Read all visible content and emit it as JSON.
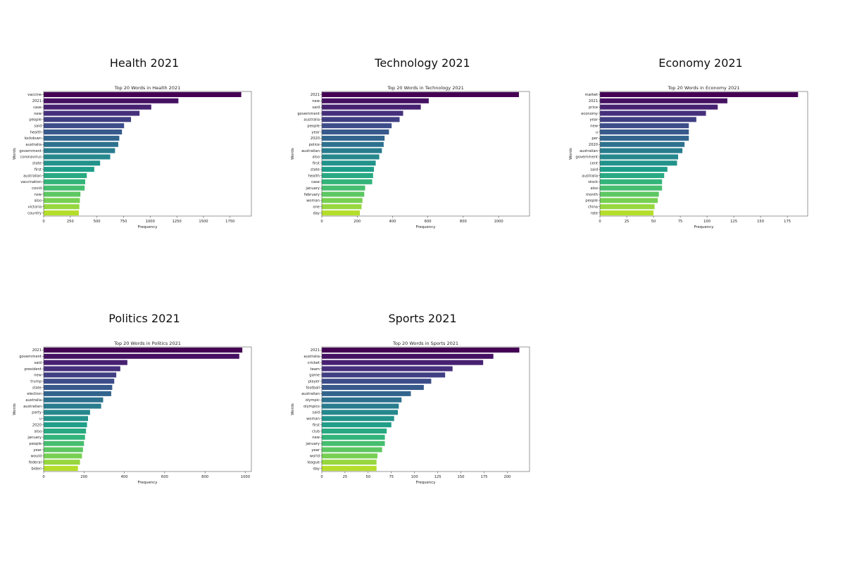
{
  "chart_data": [
    {
      "type": "bar",
      "orientation": "horizontal",
      "panel_title": "Health 2021",
      "title": "Top 20 Words in Health 2021",
      "xlabel": "Frequency",
      "ylabel": "Words",
      "xlim": [
        0,
        1950
      ],
      "xticks": [
        0,
        250,
        500,
        750,
        1000,
        1250,
        1500,
        1750
      ],
      "grid": false,
      "legend": "none",
      "colormap": "viridis",
      "categories": [
        "vaccine",
        "2021",
        "case",
        "new",
        "people",
        "said",
        "health",
        "lockdown",
        "australia",
        "government",
        "coronavirus",
        "state",
        "first",
        "australian",
        "vaccination",
        "covid",
        "nsw",
        "also",
        "victoria",
        "country"
      ],
      "values": [
        1855,
        1265,
        1010,
        900,
        820,
        755,
        735,
        710,
        700,
        670,
        625,
        530,
        475,
        405,
        390,
        385,
        345,
        340,
        335,
        330
      ]
    },
    {
      "type": "bar",
      "orientation": "horizontal",
      "panel_title": "Technology 2021",
      "title": "Top 20 Words in Technology 2021",
      "xlabel": "Frequency",
      "ylabel": "Words",
      "xlim": [
        0,
        1175
      ],
      "xticks": [
        0,
        200,
        400,
        600,
        800,
        1000
      ],
      "grid": false,
      "legend": "none",
      "colormap": "viridis",
      "categories": [
        "2021",
        "new",
        "said",
        "government",
        "australia",
        "people",
        "year",
        "2020",
        "police",
        "australian",
        "also",
        "first",
        "state",
        "health",
        "case",
        "january",
        "february",
        "woman",
        "one",
        "day"
      ],
      "values": [
        1115,
        605,
        560,
        460,
        440,
        395,
        380,
        355,
        350,
        340,
        325,
        305,
        295,
        290,
        285,
        245,
        240,
        230,
        225,
        215
      ]
    },
    {
      "type": "bar",
      "orientation": "horizontal",
      "panel_title": "Economy 2021",
      "title": "Top 20 Words in Economy 2021",
      "xlabel": "Frequency",
      "ylabel": "Words",
      "xlim": [
        0,
        194
      ],
      "xticks": [
        0,
        25,
        50,
        75,
        100,
        125,
        150,
        175
      ],
      "grid": false,
      "legend": "none",
      "colormap": "viridis",
      "categories": [
        "market",
        "2021",
        "price",
        "economy",
        "year",
        "new",
        "u",
        "per",
        "2020",
        "australian",
        "government",
        "cent",
        "said",
        "australia",
        "stock",
        "also",
        "month",
        "people",
        "china",
        "rate"
      ],
      "values": [
        185,
        119,
        110,
        99,
        90,
        83,
        83,
        83,
        79,
        77,
        73,
        72,
        63,
        60,
        58,
        58,
        55,
        54,
        51,
        50
      ]
    },
    {
      "type": "bar",
      "orientation": "horizontal",
      "panel_title": "Politics 2021",
      "title": "Top 20 Words in Politics 2021",
      "xlabel": "Frequency",
      "ylabel": "Words",
      "xlim": [
        0,
        1030
      ],
      "xticks": [
        0,
        200,
        400,
        600,
        800,
        1000
      ],
      "grid": false,
      "legend": "none",
      "colormap": "viridis",
      "categories": [
        "2021",
        "government",
        "said",
        "president",
        "new",
        "trump",
        "state",
        "election",
        "australia",
        "australian",
        "party",
        "u",
        "2020",
        "also",
        "january",
        "people",
        "year",
        "would",
        "federal",
        "biden"
      ],
      "values": [
        985,
        970,
        415,
        380,
        360,
        350,
        340,
        335,
        295,
        285,
        230,
        220,
        215,
        210,
        205,
        200,
        195,
        190,
        180,
        170
      ]
    },
    {
      "type": "bar",
      "orientation": "horizontal",
      "panel_title": "Sports 2021",
      "title": "Top 20 Words in Sports 2021",
      "xlabel": "Frequency",
      "ylabel": "Words",
      "xlim": [
        0,
        224
      ],
      "xticks": [
        0,
        25,
        50,
        75,
        100,
        125,
        150,
        175,
        200
      ],
      "grid": false,
      "legend": "none",
      "colormap": "viridis",
      "categories": [
        "2021",
        "australia",
        "cricket",
        "team",
        "game",
        "player",
        "football",
        "australian",
        "olympic",
        "olympics",
        "said",
        "woman",
        "first",
        "club",
        "new",
        "january",
        "year",
        "world",
        "league",
        "day"
      ],
      "values": [
        213,
        185,
        174,
        141,
        133,
        118,
        110,
        96,
        86,
        83,
        82,
        78,
        75,
        70,
        68,
        68,
        65,
        60,
        59,
        59
      ]
    }
  ]
}
